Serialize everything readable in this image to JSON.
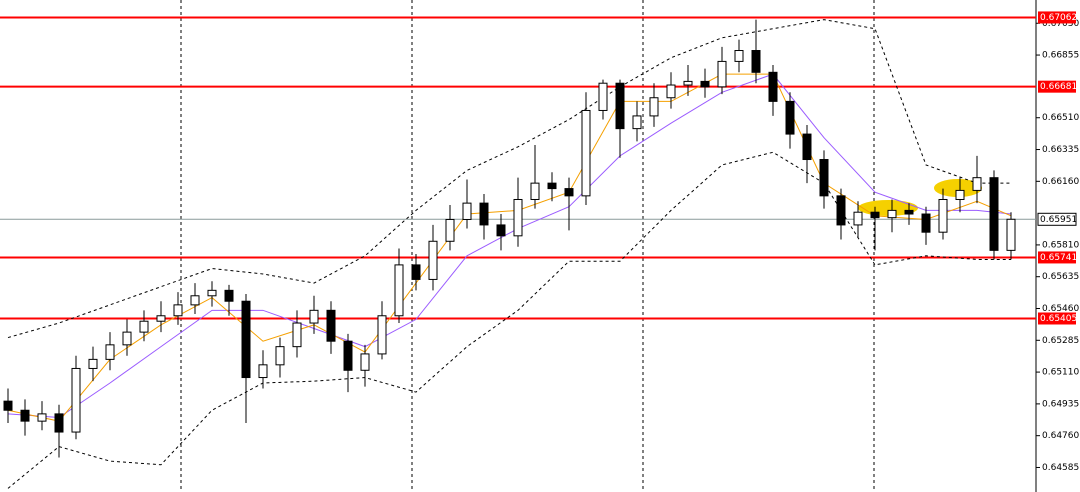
{
  "chart_data": {
    "type": "candlestick",
    "open": [
      0.6495,
      0.649,
      0.6484,
      0.6488,
      0.6478,
      0.6513,
      0.6518,
      0.6526,
      0.6533,
      0.6539,
      0.6542,
      0.6548,
      0.6553,
      0.6556,
      0.655,
      0.6508,
      0.6515,
      0.6525,
      0.6538,
      0.6545,
      0.6528,
      0.6512,
      0.6521,
      0.6542,
      0.657,
      0.6562,
      0.6583,
      0.6595,
      0.6604,
      0.6592,
      0.6586,
      0.6606,
      0.6615,
      0.6612,
      0.6608,
      0.6655,
      0.667,
      0.6645,
      0.6652,
      0.6662,
      0.6669,
      0.6671,
      0.6668,
      0.6682,
      0.6688,
      0.6676,
      0.666,
      0.6642,
      0.6628,
      0.6608,
      0.6592,
      0.6599,
      0.6596,
      0.66,
      0.6598,
      0.6588,
      0.6606,
      0.6611,
      0.6618,
      0.6578
    ],
    "high": [
      0.6502,
      0.6496,
      0.6495,
      0.6493,
      0.652,
      0.6525,
      0.6533,
      0.654,
      0.6545,
      0.655,
      0.6555,
      0.656,
      0.6561,
      0.6559,
      0.6554,
      0.6523,
      0.653,
      0.6545,
      0.6553,
      0.655,
      0.6532,
      0.6526,
      0.655,
      0.6579,
      0.6576,
      0.6592,
      0.6603,
      0.6617,
      0.6609,
      0.6598,
      0.6618,
      0.6636,
      0.6621,
      0.6618,
      0.6665,
      0.6672,
      0.6672,
      0.666,
      0.667,
      0.6676,
      0.668,
      0.6678,
      0.669,
      0.6694,
      0.6705,
      0.668,
      0.6665,
      0.6647,
      0.6633,
      0.6612,
      0.6605,
      0.6602,
      0.6606,
      0.6604,
      0.6602,
      0.6612,
      0.6618,
      0.663,
      0.6622,
      0.6599
    ],
    "low": [
      0.6483,
      0.6476,
      0.6479,
      0.6464,
      0.6474,
      0.6506,
      0.6512,
      0.652,
      0.6528,
      0.6533,
      0.6537,
      0.6543,
      0.6547,
      0.6542,
      0.6483,
      0.6502,
      0.6508,
      0.6519,
      0.6532,
      0.6521,
      0.65,
      0.6503,
      0.6518,
      0.6538,
      0.6556,
      0.6556,
      0.6578,
      0.659,
      0.6584,
      0.6578,
      0.658,
      0.6601,
      0.6605,
      0.6589,
      0.6603,
      0.665,
      0.6629,
      0.6638,
      0.6646,
      0.6656,
      0.6663,
      0.6662,
      0.6664,
      0.6676,
      0.667,
      0.6652,
      0.6634,
      0.6615,
      0.6601,
      0.6584,
      0.6585,
      0.6578,
      0.6588,
      0.6592,
      0.6581,
      0.6584,
      0.6599,
      0.6604,
      0.6573,
      0.6573
    ],
    "close": [
      0.649,
      0.6484,
      0.6488,
      0.6478,
      0.6513,
      0.6518,
      0.6526,
      0.6533,
      0.6539,
      0.6542,
      0.6548,
      0.6553,
      0.6556,
      0.655,
      0.6508,
      0.6515,
      0.6525,
      0.6538,
      0.6545,
      0.6528,
      0.6512,
      0.6521,
      0.6542,
      0.657,
      0.6562,
      0.6583,
      0.6595,
      0.6604,
      0.6592,
      0.6586,
      0.6606,
      0.6615,
      0.6612,
      0.6608,
      0.6655,
      0.667,
      0.6645,
      0.6652,
      0.6662,
      0.6669,
      0.6671,
      0.6668,
      0.6682,
      0.6688,
      0.6676,
      0.666,
      0.6642,
      0.6628,
      0.6608,
      0.6592,
      0.6599,
      0.6596,
      0.66,
      0.6598,
      0.6588,
      0.6606,
      0.6611,
      0.6618,
      0.6578,
      0.65951
    ],
    "up_color": "#ffffff",
    "down_color": "#000000",
    "indicators": {
      "x": [
        0,
        3,
        6,
        9,
        12,
        15,
        18,
        21,
        24,
        27,
        30,
        33,
        36,
        39,
        42,
        45,
        48,
        51,
        54,
        57,
        59
      ],
      "series": [
        {
          "color": "#000000",
          "dashed": true,
          "values": [
            0.653,
            0.6538,
            0.6548,
            0.6558,
            0.6568,
            0.6565,
            0.656,
            0.6575,
            0.66,
            0.6622,
            0.6635,
            0.665,
            0.6668,
            0.6684,
            0.6695,
            0.67,
            0.6705,
            0.67,
            0.6625,
            0.6615,
            0.6615
          ]
        },
        {
          "color": "#000000",
          "dashed": true,
          "values": [
            0.6447,
            0.647,
            0.6462,
            0.646,
            0.649,
            0.6505,
            0.6506,
            0.6508,
            0.65,
            0.6525,
            0.6545,
            0.6572,
            0.6572,
            0.66,
            0.6625,
            0.6632,
            0.6615,
            0.657,
            0.6575,
            0.6573,
            0.6573
          ]
        },
        {
          "color": "#9b5cff",
          "dashed": false,
          "values": [
            0.6488,
            0.6486,
            0.6505,
            0.6525,
            0.6545,
            0.6545,
            0.6535,
            0.6525,
            0.654,
            0.6575,
            0.659,
            0.6602,
            0.663,
            0.6648,
            0.6665,
            0.6675,
            0.664,
            0.661,
            0.66,
            0.66,
            0.6598
          ]
        },
        {
          "color": "#f5a000",
          "dashed": false,
          "values": [
            0.649,
            0.6484,
            0.6518,
            0.6537,
            0.6552,
            0.6528,
            0.6537,
            0.6522,
            0.656,
            0.6598,
            0.66,
            0.661,
            0.666,
            0.666,
            0.6675,
            0.6675,
            0.6615,
            0.6597,
            0.6595,
            0.6605,
            0.6597
          ]
        }
      ]
    },
    "levels": {
      "color": "#ff0000",
      "values": [
        0.67062,
        0.66681,
        0.65741,
        0.65405
      ]
    },
    "current_price": {
      "value": 0.65951,
      "color": "#8a9a9a"
    },
    "ylim": [
      0.6445,
      0.67158
    ],
    "yticks": [
      {
        "value": 0.6703,
        "label": "0.67030"
      },
      0.66855,
      {
        "value": 0.6651,
        "label": "0.66510"
      },
      0.66335,
      {
        "value": 0.6616,
        "label": "0.66160"
      },
      {
        "value": 0.6581,
        "label": "0.65810"
      },
      0.65635,
      {
        "value": 0.6546,
        "label": "0.65460"
      },
      0.65285,
      {
        "value": 0.6511,
        "label": "0.65110"
      },
      0.64935,
      {
        "value": 0.6476,
        "label": "0.64760"
      },
      0.64585
    ]
  }
}
